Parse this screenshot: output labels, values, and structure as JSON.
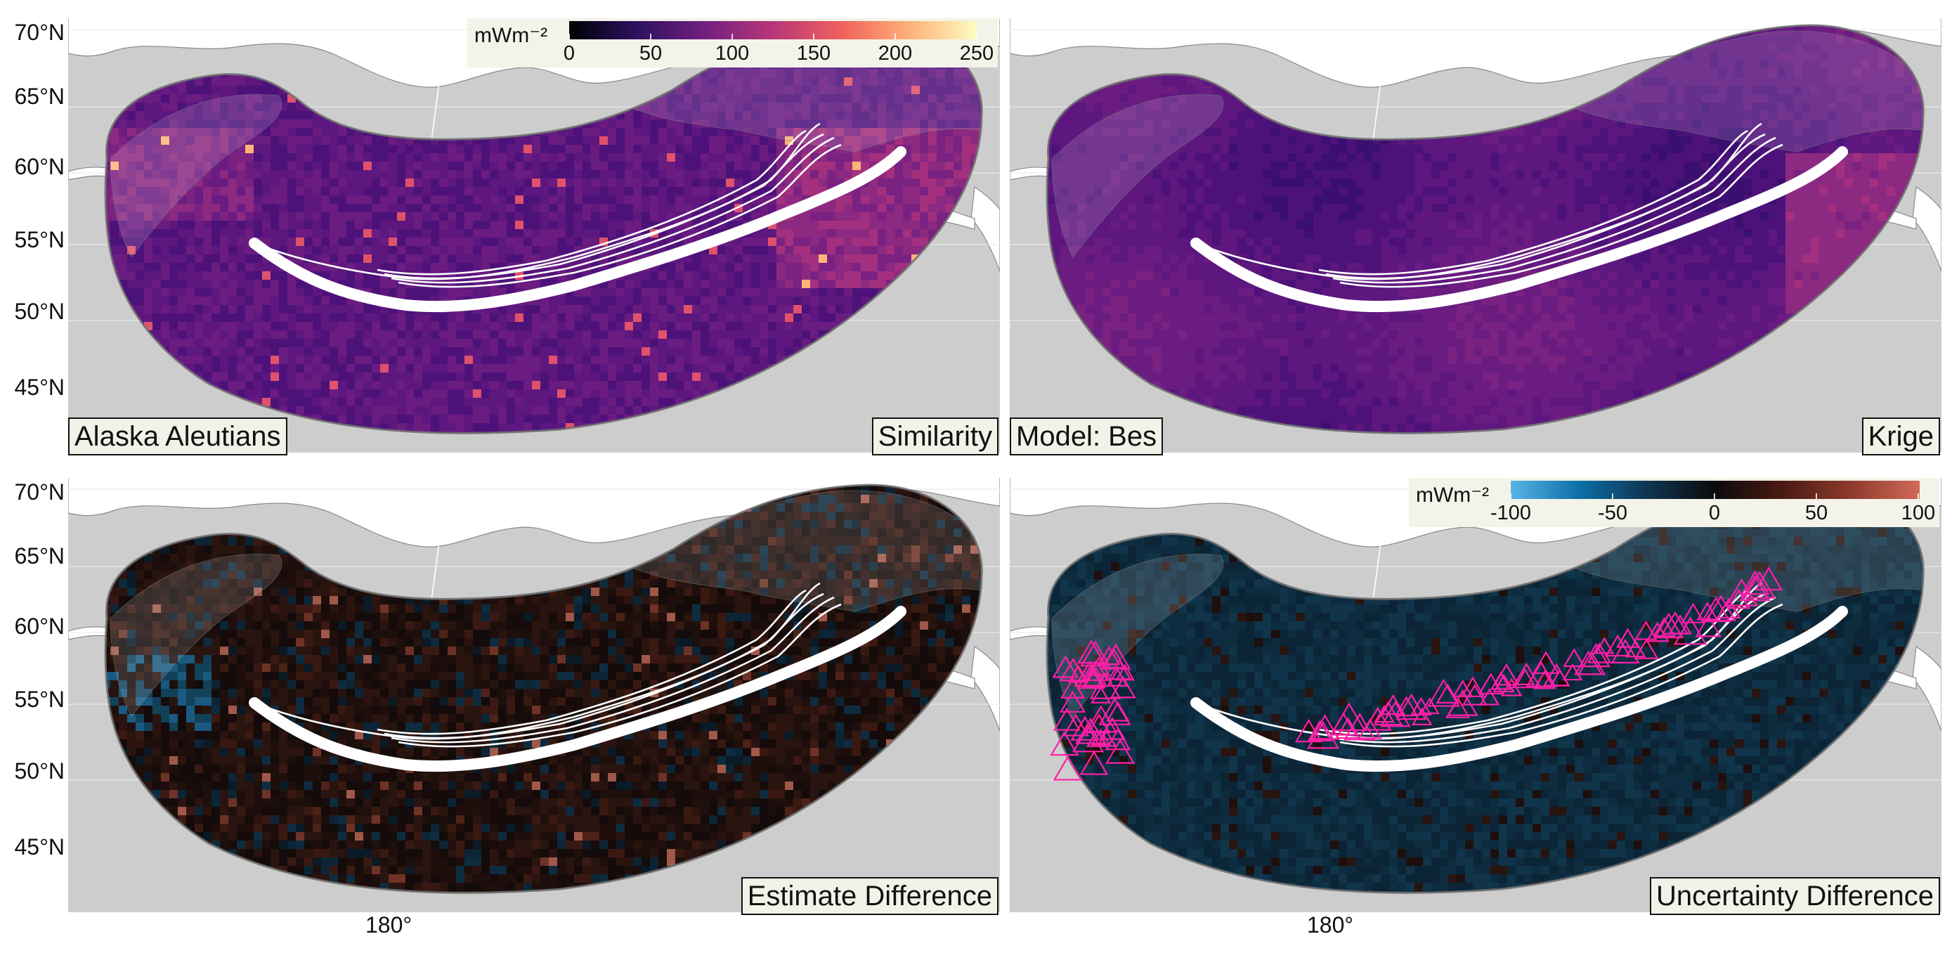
{
  "region": "Alaska Aleutians",
  "latitude_labels": [
    "70°N",
    "65°N",
    "60°N",
    "55°N",
    "50°N",
    "45°N"
  ],
  "longitude_label": "180°",
  "panels": [
    {
      "id": "similarity",
      "right_label": "Similarity",
      "left_label": "Alaska Aleutians",
      "palette": "magma"
    },
    {
      "id": "krige",
      "right_label": "Krige",
      "left_label": "Model: Bes",
      "palette": "magma"
    },
    {
      "id": "estimate-diff",
      "right_label": "Estimate Difference",
      "palette": "diverging"
    },
    {
      "id": "uncertainty-diff",
      "right_label": "Uncertainty Difference",
      "palette": "diverging"
    }
  ],
  "colorbar_heatflow": {
    "unit": "mWm⁻²",
    "ticks": [
      "0",
      "50",
      "100",
      "150",
      "200",
      "250"
    ],
    "colors": [
      "#000004",
      "#2d1160",
      "#721f81",
      "#b73779",
      "#f1605d",
      "#feb078",
      "#fcfdbf"
    ]
  },
  "colorbar_difference": {
    "unit": "mWm⁻²",
    "ticks": [
      "-100",
      "-50",
      "0",
      "50",
      "100"
    ],
    "colors": [
      "#5ab4e8",
      "#0b6fa6",
      "#0f3552",
      "#0b0b0b",
      "#4a1a12",
      "#8e3b2c",
      "#d06a5a"
    ]
  },
  "marker_color": "#ff1fa8"
}
